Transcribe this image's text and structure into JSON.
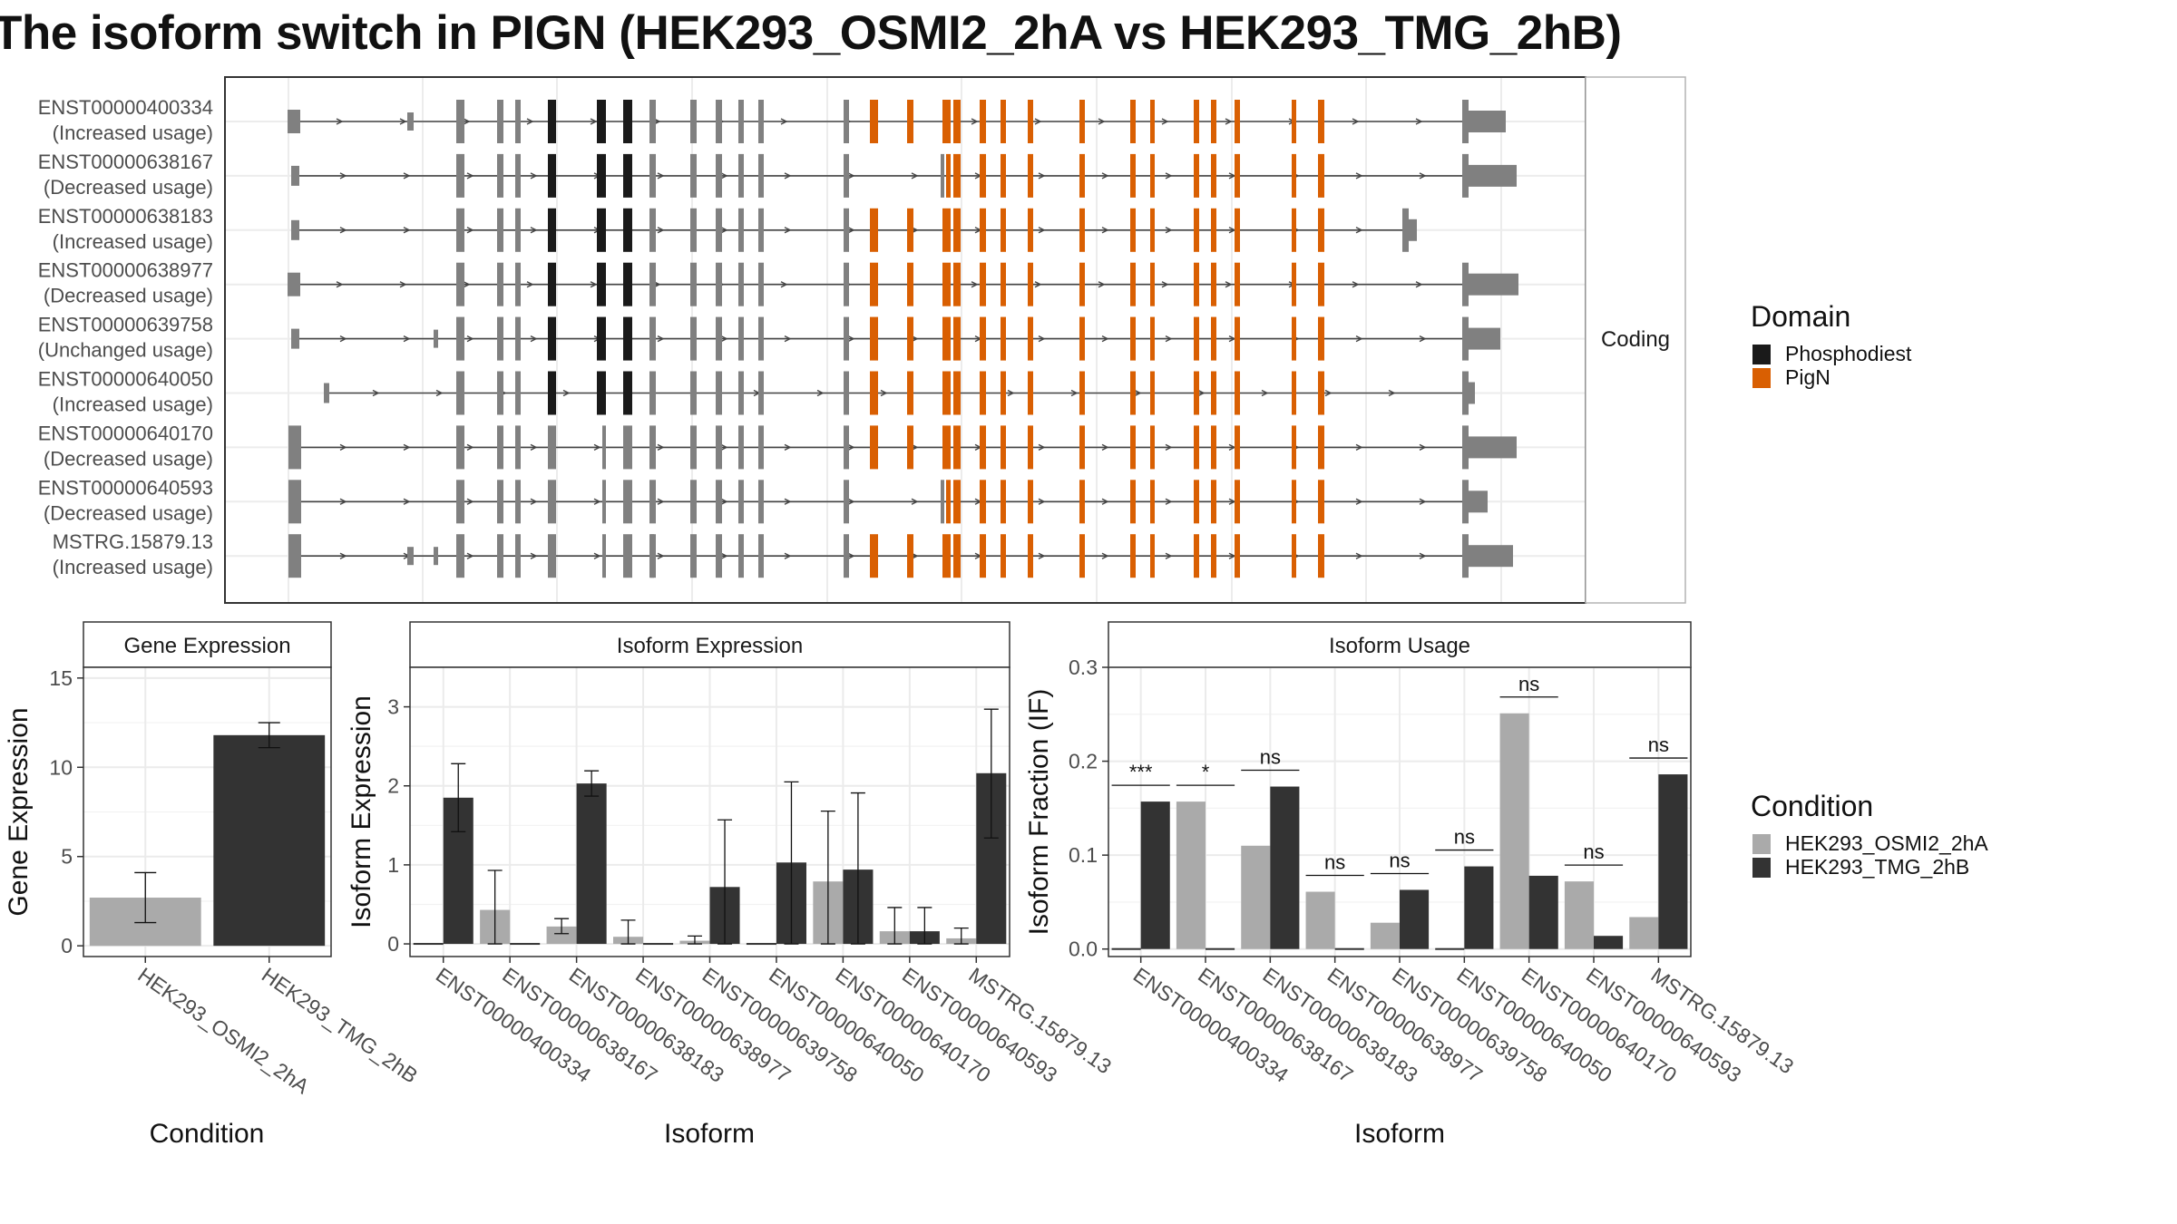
{
  "title": "The isoform switch in PIGN (HEK293_OSMI2_2hA vs HEK293_TMG_2hB)",
  "colors": {
    "phosphodiest": "#1a1a1a",
    "pign": "#d95f02",
    "exon": "#808080",
    "cond_a": "#aaaaaa",
    "cond_b": "#333333"
  },
  "structure": {
    "facet_label": "Coding",
    "isoforms": [
      {
        "id": "ENST00000400334",
        "usage": "(Increased usage)"
      },
      {
        "id": "ENST00000638167",
        "usage": "(Decreased usage)"
      },
      {
        "id": "ENST00000638183",
        "usage": "(Increased usage)"
      },
      {
        "id": "ENST00000638977",
        "usage": "(Decreased usage)"
      },
      {
        "id": "ENST00000639758",
        "usage": "(Unchanged usage)"
      },
      {
        "id": "ENST00000640050",
        "usage": "(Increased usage)"
      },
      {
        "id": "ENST00000640170",
        "usage": "(Decreased usage)"
      },
      {
        "id": "ENST00000640593",
        "usage": "(Decreased usage)"
      },
      {
        "id": "MSTRG.15879.13",
        "usage": "(Increased usage)"
      }
    ]
  },
  "legends": {
    "domain": {
      "title": "Domain",
      "items": [
        "Phosphodiest",
        "PigN"
      ]
    },
    "condition": {
      "title": "Condition",
      "items": [
        "HEK293_OSMI2_2hA",
        "HEK293_TMG_2hB"
      ]
    }
  },
  "chart_data": [
    {
      "type": "bar",
      "title": "Gene Expression",
      "xlabel": "Condition",
      "ylabel": "Gene Expression",
      "ylim": [
        -0.6,
        15.6
      ],
      "yticks": [
        0,
        5,
        10,
        15
      ],
      "categories": [
        "HEK293_OSMI2_2hA",
        "HEK293_TMG_2hB"
      ],
      "values": [
        2.7,
        11.8
      ],
      "error_low": [
        1.3,
        11.1
      ],
      "error_high": [
        4.1,
        12.5
      ]
    },
    {
      "type": "bar",
      "title": "Isoform Expression",
      "xlabel": "Isoform",
      "ylabel": "Isoform Expression",
      "ylim": [
        -0.16,
        3.5
      ],
      "yticks": [
        0,
        1,
        2,
        3
      ],
      "categories": [
        "ENST00000400334",
        "ENST00000638167",
        "ENST00000638183",
        "ENST00000638977",
        "ENST00000639758",
        "ENST00000640050",
        "ENST00000640170",
        "ENST00000640593",
        "MSTRG.15879.13"
      ],
      "series": [
        {
          "name": "HEK293_OSMI2_2hA",
          "values": [
            0.0,
            0.43,
            0.22,
            0.09,
            0.04,
            0.0,
            0.79,
            0.16,
            0.07
          ],
          "error_low": [
            0.0,
            0.0,
            0.13,
            0.0,
            0.0,
            0.0,
            0.0,
            0.0,
            0.0
          ],
          "error_high": [
            0.0,
            0.93,
            0.32,
            0.3,
            0.1,
            0.0,
            1.68,
            0.46,
            0.2
          ]
        },
        {
          "name": "HEK293_TMG_2hB",
          "values": [
            1.85,
            0.0,
            2.03,
            0.0,
            0.72,
            1.03,
            0.94,
            0.16,
            2.16
          ],
          "error_low": [
            1.42,
            0.0,
            1.87,
            0.0,
            0.0,
            0.0,
            0.0,
            0.0,
            1.34
          ],
          "error_high": [
            2.28,
            0.0,
            2.19,
            0.0,
            1.57,
            2.05,
            1.91,
            0.46,
            2.97
          ]
        }
      ]
    },
    {
      "type": "bar",
      "title": "Isoform Usage",
      "xlabel": "Isoform",
      "ylabel": "Isoform Fraction (IF)",
      "ylim": [
        -0.008,
        0.3
      ],
      "yticks": [
        0.0,
        0.1,
        0.2,
        0.3
      ],
      "ytick_labels": [
        "0.0",
        "0.1",
        "0.2",
        "0.3"
      ],
      "categories": [
        "ENST00000400334",
        "ENST00000638167",
        "ENST00000638183",
        "ENST00000638977",
        "ENST00000639758",
        "ENST00000640050",
        "ENST00000640170",
        "ENST00000640593",
        "MSTRG.15879.13"
      ],
      "series": [
        {
          "name": "HEK293_OSMI2_2hA",
          "values": [
            0.0,
            0.157,
            0.11,
            0.061,
            0.028,
            0.0,
            0.251,
            0.072,
            0.034
          ]
        },
        {
          "name": "HEK293_TMG_2hB",
          "values": [
            0.157,
            0.0,
            0.173,
            0.0,
            0.063,
            0.088,
            0.078,
            0.014,
            0.186
          ]
        }
      ],
      "significance": [
        "***",
        "*",
        "ns",
        "ns",
        "ns",
        "ns",
        "ns",
        "ns",
        "ns"
      ]
    }
  ]
}
